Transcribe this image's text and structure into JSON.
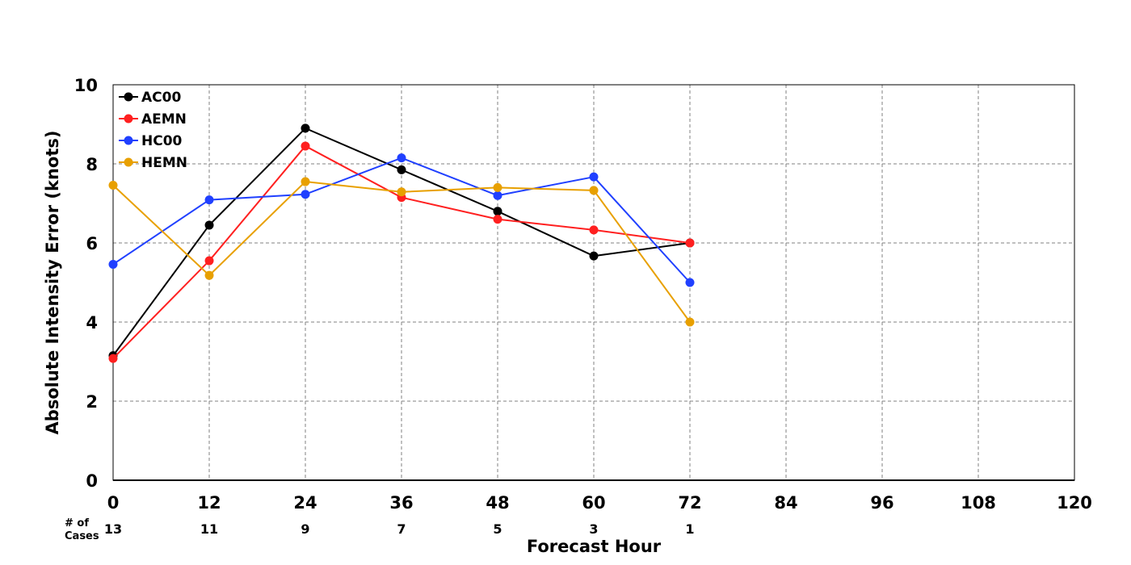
{
  "chart_data": {
    "type": "line",
    "xlabel": "Forecast Hour",
    "ylabel": "Absolute Intensity Error (knots)",
    "xlim": [
      0,
      120
    ],
    "ylim": [
      0,
      10
    ],
    "x_ticks": [
      "0",
      "12",
      "24",
      "36",
      "48",
      "60",
      "72",
      "84",
      "96",
      "108",
      "120"
    ],
    "y_ticks": [
      "0",
      "2",
      "4",
      "6",
      "8",
      "10"
    ],
    "grid": true,
    "legend_position": "top-left",
    "cases_label_line1": "# of",
    "cases_label_line2": "Cases",
    "cases": [
      {
        "x": 0,
        "n": "13"
      },
      {
        "x": 12,
        "n": "11"
      },
      {
        "x": 24,
        "n": "9"
      },
      {
        "x": 36,
        "n": "7"
      },
      {
        "x": 48,
        "n": "5"
      },
      {
        "x": 60,
        "n": "3"
      },
      {
        "x": 72,
        "n": "1"
      }
    ],
    "x": [
      0,
      12,
      24,
      36,
      48,
      60,
      72
    ],
    "series": [
      {
        "name": "AC00",
        "color": "#000000",
        "values": [
          3.15,
          6.45,
          8.9,
          7.85,
          6.8,
          5.67,
          6.0
        ]
      },
      {
        "name": "AEMN",
        "color": "#ff2020",
        "values": [
          3.08,
          5.55,
          8.45,
          7.15,
          6.6,
          6.33,
          6.0
        ]
      },
      {
        "name": "HC00",
        "color": "#2040ff",
        "values": [
          5.46,
          7.09,
          7.23,
          8.15,
          7.2,
          7.67,
          5.0
        ]
      },
      {
        "name": "HEMN",
        "color": "#e8a000",
        "values": [
          7.46,
          5.18,
          7.55,
          7.29,
          7.4,
          7.33,
          4.0
        ]
      }
    ]
  }
}
